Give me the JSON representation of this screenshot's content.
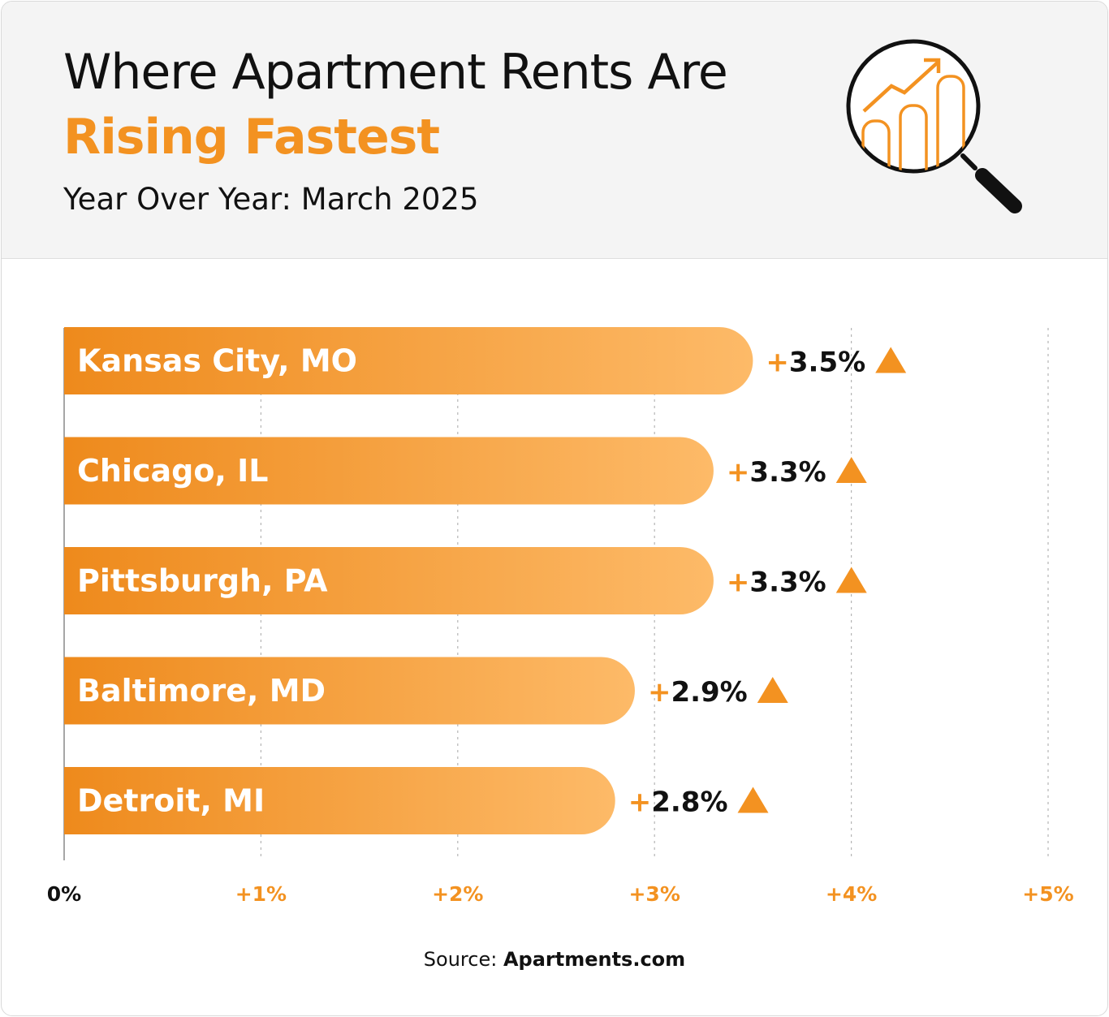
{
  "header": {
    "title_line1": "Where Apartment Rents Are",
    "title_line2": "Rising Fastest",
    "subtitle": "Year Over Year: March 2025"
  },
  "icons": {
    "logo": "magnifier-chart-icon",
    "change_indicator": "triangle-up-icon"
  },
  "colors": {
    "accent": "#f39221",
    "bar_gradient_start": "#ee8a1c",
    "bar_gradient_end": "#fdba68",
    "header_bg": "#f4f4f4",
    "text": "#111111"
  },
  "source": {
    "label": "Source:",
    "name": "Apartments.com"
  },
  "chart_data": {
    "type": "bar",
    "orientation": "horizontal",
    "title": "Where Apartment Rents Are Rising Fastest",
    "subtitle": "Year Over Year: March 2025",
    "categories": [
      "Kansas City, MO",
      "Chicago, IL",
      "Pittsburgh, PA",
      "Baltimore, MD",
      "Detroit, MI"
    ],
    "values": [
      3.5,
      3.3,
      3.3,
      2.9,
      2.8
    ],
    "value_labels": [
      "+3.5%",
      "+3.3%",
      "+3.3%",
      "+2.9%",
      "+2.8%"
    ],
    "xlim": [
      0,
      5
    ],
    "xticks": [
      0,
      1,
      2,
      3,
      4,
      5
    ],
    "xtick_labels": [
      "0%",
      "+1%",
      "+2%",
      "+3%",
      "+4%",
      "+5%"
    ],
    "grid": "vertical dotted",
    "legend": "none"
  }
}
